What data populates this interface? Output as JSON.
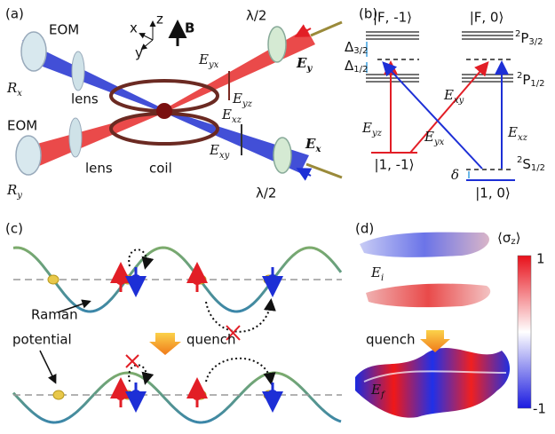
{
  "panel_a": {
    "label": "(a)",
    "eom_top": "EOM",
    "lens_top": "lens",
    "r_x": {
      "base": "R",
      "sub": "x"
    },
    "axis_x": "x",
    "axis_y": "y",
    "axis_z": "z",
    "field": "B",
    "waveplate_top": "λ/2",
    "e_yx": {
      "base": "E",
      "sub": "yx"
    },
    "e_yz": {
      "base": "E",
      "sub": "yz"
    },
    "e_y": {
      "base": "E",
      "sub": "y"
    },
    "eom_bottom": "EOM",
    "lens_bottom": "lens",
    "r_y": {
      "base": "R",
      "sub": "y"
    },
    "e_xz": {
      "base": "E",
      "sub": "xz"
    },
    "e_xy": {
      "base": "E",
      "sub": "xy"
    },
    "coil": "coil",
    "e_x": {
      "base": "E",
      "sub": "x"
    },
    "waveplate_bottom": "λ/2"
  },
  "panel_b": {
    "label": "(b)",
    "state_f_m1": "|F, -1⟩",
    "state_f_0": "|F, 0⟩",
    "p32": {
      "sup": "2",
      "base": "P",
      "sub": "3/2"
    },
    "delta_32": {
      "base": "Δ",
      "sub": "3/2"
    },
    "delta_12": {
      "base": "Δ",
      "sub": "1/2"
    },
    "p12": {
      "sup": "2",
      "base": "P",
      "sub": "1/2"
    },
    "e_yz": {
      "base": "E",
      "sub": "yz"
    },
    "e_yx": {
      "base": "E",
      "sub": "yx"
    },
    "e_xy": {
      "base": "E",
      "sub": "xy"
    },
    "e_xz": {
      "base": "E",
      "sub": "xz"
    },
    "state_1_m1": "|1, -1⟩",
    "detuning": "δ",
    "s12": {
      "sup": "2",
      "base": "S",
      "sub": "1/2"
    },
    "state_1_0": "|1, 0⟩"
  },
  "panel_c": {
    "label": "(c)",
    "raman_line1": "Raman",
    "raman_line2": "potential",
    "quench": "quench"
  },
  "panel_d": {
    "label": "(d)",
    "colorbar_title": {
      "open": "⟨σ",
      "sub": "z",
      "close": "⟩"
    },
    "e_i": {
      "base": "E",
      "sub": "i"
    },
    "colorbar_max": "1",
    "quench": "quench",
    "e_f": {
      "base": "E",
      "sub": "f"
    },
    "colorbar_min": "-1"
  }
}
